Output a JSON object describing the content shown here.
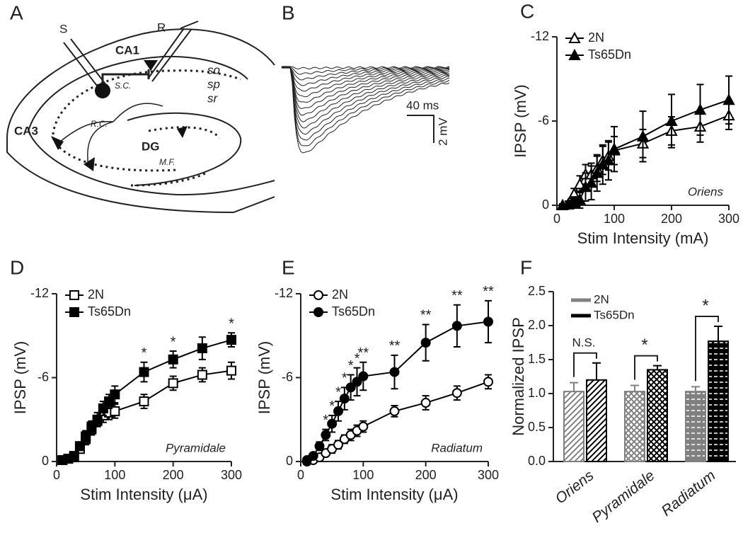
{
  "panels": {
    "A": {
      "label": "A",
      "stim": "S",
      "rec": "R",
      "ca1": "CA1",
      "so": "so",
      "sp": "sp",
      "sr": "sr",
      "sc": "S.C.",
      "ca3": "CA3",
      "rc": "R.C.",
      "dg": "DG",
      "mf": "M.F."
    },
    "B": {
      "label": "B",
      "time_scale": "40 ms",
      "voltage_scale": "2 mV"
    }
  },
  "chart_data": [
    {
      "type": "line",
      "panel_label": "C",
      "x_label": "Stim Intensity (mA)",
      "y_label": "IPSP (mV)",
      "annotation": "Oriens",
      "x": [
        10,
        20,
        30,
        40,
        50,
        60,
        70,
        80,
        90,
        100,
        150,
        200,
        250,
        300
      ],
      "xlim": [
        0,
        300
      ],
      "xticks": [
        0,
        100,
        200,
        300
      ],
      "ylim": [
        0,
        -12
      ],
      "yticks": [
        0,
        -6,
        -12
      ],
      "legend": "upper left",
      "series": [
        {
          "name": "2N",
          "color": "#000000",
          "fill": "#ffffff",
          "marker": "triangle",
          "values": [
            0,
            -0.1,
            -0.8,
            -1.5,
            -2.2,
            -2.2,
            -2.6,
            -3.2,
            -3.5,
            -3.9,
            -4.4,
            -5.3,
            -5.6,
            -6.4
          ],
          "errors": [
            0.1,
            0.2,
            0.4,
            0.6,
            0.7,
            0.8,
            0.9,
            1.0,
            1.0,
            1.0,
            1.0,
            1.0,
            1.1,
            1.0
          ]
        },
        {
          "name": "Ts65Dn",
          "color": "#000000",
          "fill": "#000000",
          "marker": "triangle",
          "values": [
            0,
            -0.05,
            -0.2,
            -0.4,
            -1.3,
            -1.6,
            -2.3,
            -2.9,
            -3.2,
            -4.0,
            -4.9,
            -6.0,
            -6.8,
            -7.5
          ],
          "errors": [
            0.1,
            0.2,
            0.4,
            0.6,
            1.0,
            1.2,
            1.3,
            1.4,
            1.4,
            1.6,
            1.8,
            1.9,
            1.8,
            1.7
          ]
        }
      ]
    },
    {
      "type": "line",
      "panel_label": "D",
      "x_label": "Stim Intensity (μA)",
      "y_label": "IPSP (mV)",
      "annotation": "Pyramidale",
      "x": [
        10,
        20,
        30,
        40,
        50,
        60,
        70,
        80,
        90,
        100,
        150,
        200,
        250,
        300
      ],
      "xlim": [
        0,
        300
      ],
      "xticks": [
        0,
        100,
        200,
        300
      ],
      "ylim": [
        0,
        -12
      ],
      "yticks": [
        0,
        -6,
        -12
      ],
      "legend": "upper left",
      "significance_labels": [
        null,
        null,
        null,
        null,
        null,
        null,
        null,
        null,
        null,
        null,
        "*",
        "*",
        null,
        "*"
      ],
      "series": [
        {
          "name": "2N",
          "color": "#000000",
          "fill": "#ffffff",
          "marker": "square",
          "values": [
            -0.1,
            -0.2,
            -0.3,
            -0.9,
            -1.6,
            -2.3,
            -2.9,
            -3.3,
            -3.5,
            -3.6,
            -4.3,
            -5.6,
            -6.2,
            -6.5
          ],
          "errors": [
            0.1,
            0.1,
            0.2,
            0.3,
            0.4,
            0.4,
            0.4,
            0.5,
            0.5,
            0.5,
            0.5,
            0.5,
            0.5,
            0.6
          ]
        },
        {
          "name": "Ts65Dn",
          "color": "#000000",
          "fill": "#000000",
          "marker": "square",
          "values": [
            -0.1,
            -0.2,
            -0.4,
            -1.1,
            -1.8,
            -2.5,
            -3.0,
            -3.8,
            -4.3,
            -4.8,
            -6.4,
            -7.3,
            -8.1,
            -8.7
          ],
          "errors": [
            0.1,
            0.1,
            0.2,
            0.3,
            0.4,
            0.4,
            0.5,
            0.5,
            0.5,
            0.6,
            0.7,
            0.6,
            0.8,
            0.5
          ]
        }
      ]
    },
    {
      "type": "line",
      "panel_label": "E",
      "x_label": "Stim Intensity (μA)",
      "y_label": "IPSP (mV)",
      "annotation": "Radiatum",
      "x": [
        10,
        20,
        30,
        40,
        50,
        60,
        70,
        80,
        90,
        100,
        150,
        200,
        250,
        300
      ],
      "xlim": [
        0,
        300
      ],
      "xticks": [
        0,
        100,
        200,
        300
      ],
      "ylim": [
        0,
        -12
      ],
      "yticks": [
        0,
        -6,
        -12
      ],
      "legend": "upper left",
      "significance_labels": [
        null,
        null,
        null,
        "*",
        "*",
        "*",
        "*",
        "*",
        "*",
        "**",
        "**",
        "**",
        "**",
        "**"
      ],
      "series": [
        {
          "name": "2N",
          "color": "#000000",
          "fill": "#ffffff",
          "marker": "circle",
          "values": [
            0,
            -0.1,
            -0.3,
            -0.6,
            -0.9,
            -1.2,
            -1.6,
            -1.9,
            -2.2,
            -2.5,
            -3.6,
            -4.2,
            -4.9,
            -5.7
          ],
          "errors": [
            0.1,
            0.1,
            0.2,
            0.2,
            0.3,
            0.3,
            0.3,
            0.4,
            0.4,
            0.4,
            0.4,
            0.5,
            0.5,
            0.5
          ]
        },
        {
          "name": "Ts65Dn",
          "color": "#000000",
          "fill": "#000000",
          "marker": "circle",
          "values": [
            -0.1,
            -0.4,
            -1.1,
            -1.9,
            -2.7,
            -3.6,
            -4.5,
            -5.3,
            -5.7,
            -6.1,
            -6.4,
            -8.5,
            -9.7,
            -10.0
          ],
          "errors": [
            0.1,
            0.2,
            0.3,
            0.4,
            0.6,
            0.7,
            0.8,
            0.9,
            1.0,
            1.0,
            1.2,
            1.3,
            1.5,
            1.5
          ]
        }
      ]
    },
    {
      "type": "bar",
      "panel_label": "F",
      "y_label": "Normalized IPSP",
      "categories": [
        "Oriens",
        "Pyramidale",
        "Radiatum"
      ],
      "patterns": [
        "diagonal",
        "crosshatch",
        "dashes"
      ],
      "comparison_labels": [
        "N.S.",
        "*",
        "*"
      ],
      "ylim": [
        0,
        2.5
      ],
      "yticks": [
        {
          "value": 0,
          "label": "0.0"
        },
        0.5,
        {
          "value": 1,
          "label": "1.0"
        },
        1.5,
        {
          "value": 2,
          "label": "2.0"
        },
        2.5
      ],
      "legend": "upper left",
      "series": [
        {
          "name": "2N",
          "color": "#808080",
          "values": [
            1.03,
            1.03,
            1.03
          ],
          "errors": [
            0.13,
            0.09,
            0.07
          ]
        },
        {
          "name": "Ts65Dn",
          "color": "#000000",
          "values": [
            1.2,
            1.35,
            1.77
          ],
          "errors": [
            0.25,
            0.06,
            0.22
          ]
        }
      ]
    }
  ]
}
